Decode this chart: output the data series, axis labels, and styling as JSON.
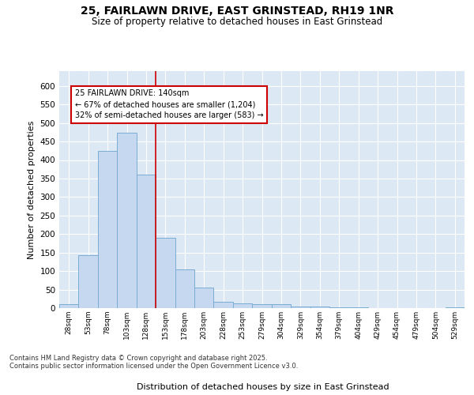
{
  "title_line1": "25, FAIRLAWN DRIVE, EAST GRINSTEAD, RH19 1NR",
  "title_line2": "Size of property relative to detached houses in East Grinstead",
  "xlabel": "Distribution of detached houses by size in East Grinstead",
  "ylabel": "Number of detached properties",
  "bar_labels": [
    "28sqm",
    "53sqm",
    "78sqm",
    "103sqm",
    "128sqm",
    "153sqm",
    "178sqm",
    "203sqm",
    "228sqm",
    "253sqm",
    "279sqm",
    "304sqm",
    "329sqm",
    "354sqm",
    "379sqm",
    "404sqm",
    "429sqm",
    "454sqm",
    "479sqm",
    "504sqm",
    "529sqm"
  ],
  "bar_values": [
    10,
    143,
    424,
    474,
    360,
    190,
    104,
    55,
    17,
    13,
    10,
    10,
    5,
    5,
    2,
    2,
    0,
    0,
    0,
    0,
    3
  ],
  "bar_color": "#c5d8f0",
  "bar_edge_color": "#7aadd4",
  "vline_x": 4.5,
  "vline_color": "#cc0000",
  "annotation_title": "25 FAIRLAWN DRIVE: 140sqm",
  "annotation_line1": "← 67% of detached houses are smaller (1,204)",
  "annotation_line2": "32% of semi-detached houses are larger (583) →",
  "annotation_box_color": "#ffffff",
  "annotation_box_edge": "#cc0000",
  "ylim": [
    0,
    640
  ],
  "yticks": [
    0,
    50,
    100,
    150,
    200,
    250,
    300,
    350,
    400,
    450,
    500,
    550,
    600
  ],
  "background_color": "#dde8f5",
  "footer_line1": "Contains HM Land Registry data © Crown copyright and database right 2025.",
  "footer_line2": "Contains public sector information licensed under the Open Government Licence v3.0."
}
